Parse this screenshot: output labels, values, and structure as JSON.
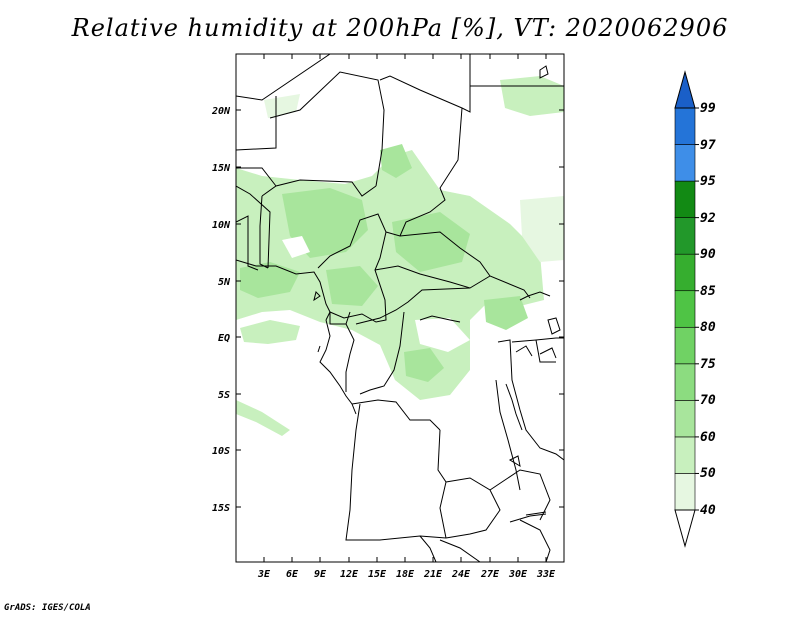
{
  "title": "Relative humidity at 200hPa [%], VT: 2020062906",
  "credit": "GrADS: IGES/COLA",
  "map": {
    "lat_labels": [
      "20N",
      "15N",
      "10N",
      "5N",
      "EQ",
      "5S",
      "10S",
      "15S"
    ],
    "lon_labels": [
      "3E",
      "6E",
      "9E",
      "12E",
      "15E",
      "18E",
      "21E",
      "24E",
      "27E",
      "30E",
      "33E"
    ]
  },
  "colorbar": {
    "labels": [
      "40",
      "50",
      "60",
      "70",
      "75",
      "80",
      "85",
      "90",
      "92",
      "95",
      "97",
      "99"
    ],
    "colors": [
      "#ffffff",
      "#e6f7e1",
      "#c8f0be",
      "#a8e59c",
      "#8cdc80",
      "#70d264",
      "#4fc445",
      "#36ae2f",
      "#22982a",
      "#128a14",
      "#3e8ee8",
      "#2474d8",
      "#1a5fc8"
    ]
  }
}
